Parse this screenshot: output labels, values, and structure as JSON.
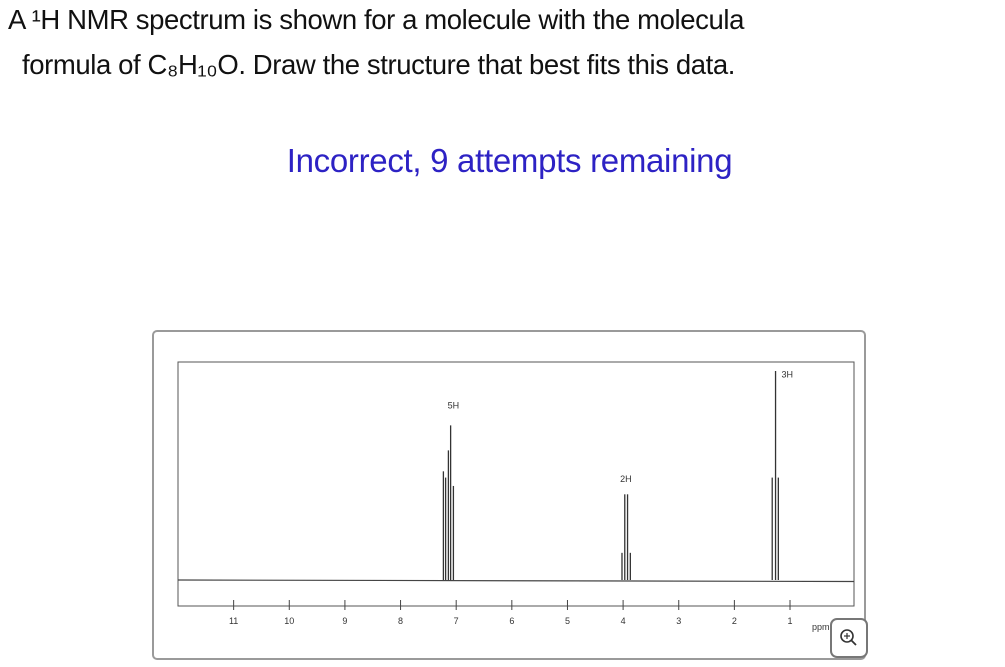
{
  "question": {
    "line1": "A ¹H NMR spectrum is shown for a molecule with the molecula",
    "line2": "formula of C₈H₁₀O. Draw the structure that best fits this data."
  },
  "status": "Incorrect, 9 attempts remaining",
  "zoom_icon": "zoom-in-magnifier-icon",
  "chart_data": {
    "type": "line",
    "title": "",
    "xlabel": "ppm",
    "ylabel": "",
    "xlim": [
      12.0,
      -0.15
    ],
    "x_reversed": true,
    "grid": false,
    "xticks": [
      "11",
      "10",
      "9",
      "8",
      "7",
      "6",
      "5",
      "4",
      "3",
      "2",
      "1"
    ],
    "peaks": [
      {
        "ppm": 7.23,
        "intensity": 0.52
      },
      {
        "ppm": 7.19,
        "intensity": 0.49
      },
      {
        "ppm": 7.14,
        "intensity": 0.62
      },
      {
        "ppm": 7.1,
        "intensity": 0.74
      },
      {
        "ppm": 7.05,
        "intensity": 0.45
      },
      {
        "ppm": 4.02,
        "intensity": 0.13
      },
      {
        "ppm": 3.97,
        "intensity": 0.41
      },
      {
        "ppm": 3.92,
        "intensity": 0.41
      },
      {
        "ppm": 3.87,
        "intensity": 0.13
      },
      {
        "ppm": 1.32,
        "intensity": 0.49
      },
      {
        "ppm": 1.26,
        "intensity": 1.0
      },
      {
        "ppm": 1.21,
        "intensity": 0.49
      }
    ],
    "integrations": [
      {
        "label": "5H",
        "ppm": 7.05,
        "level": 0.82
      },
      {
        "label": "2H",
        "ppm": 3.95,
        "level": 0.47
      },
      {
        "label": "3H",
        "ppm": 1.05,
        "level": 0.97
      }
    ]
  }
}
